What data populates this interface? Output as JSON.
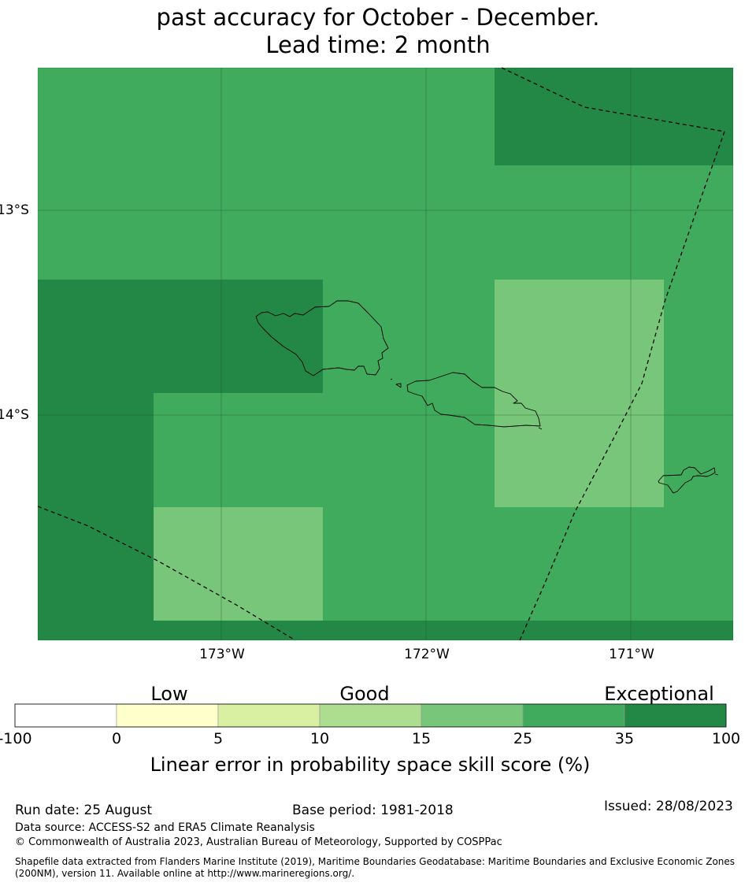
{
  "title": {
    "line2": "past accuracy for October - December.",
    "line3": "Lead time: 2 month"
  },
  "map": {
    "lat_labels": [
      "13°S",
      "14°S"
    ],
    "lon_labels": [
      "173°W",
      "172°W",
      "171°W"
    ],
    "colors": {
      "exceptional": "#238845",
      "high": "#41ab5d",
      "good_high": "#78c679",
      "water_line": "#000000"
    }
  },
  "colorbar": {
    "category_labels": [
      "Low",
      "Good",
      "Exceptional"
    ],
    "ticks": [
      "-100",
      "0",
      "5",
      "10",
      "15",
      "25",
      "35",
      "100"
    ],
    "colors": [
      "#ffffff",
      "#ffffcc",
      "#d9f0a3",
      "#addd8e",
      "#78c679",
      "#41ab5d",
      "#238845"
    ],
    "label": "Linear error in probability space skill score (%)"
  },
  "footer": {
    "run_date": "Run date: 25 August",
    "base_period": "Base period: 1981-2018",
    "issued": "Issued: 28/08/2023",
    "data_source": "Data source: ACCESS-S2 and ERA5 Climate Reanalysis",
    "copyright": "© Commonwealth of Australia 2023, Australian Bureau of Meteorology, Supported by COSPPac",
    "shapefile_note": "Shapefile data extracted from Flanders Marine Institute (2019), Maritime Boundaries Geodatabase: Maritime Boundaries and Exclusive Economic Zones (200NM), version 11. Available online at http://www.marineregions.org/."
  }
}
